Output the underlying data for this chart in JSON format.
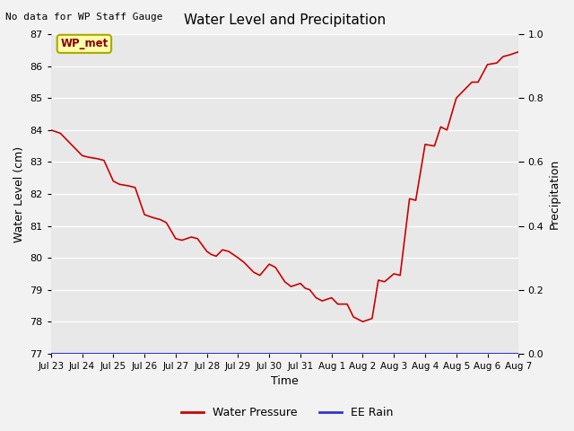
{
  "title": "Water Level and Precipitation",
  "top_left_text": "No data for WP Staff Gauge",
  "xlabel": "Time",
  "ylabel_left": "Water Level (cm)",
  "ylabel_right": "Precipitation",
  "ylim_left": [
    77.0,
    87.0
  ],
  "ylim_right": [
    0.0,
    1.0
  ],
  "yticks_left": [
    77.0,
    78.0,
    79.0,
    80.0,
    81.0,
    82.0,
    83.0,
    84.0,
    85.0,
    86.0,
    87.0
  ],
  "yticks_right": [
    0.0,
    0.2,
    0.4,
    0.6,
    0.8,
    1.0
  ],
  "xtick_labels": [
    "Jul 23",
    "Jul 24",
    "Jul 25",
    "Jul 26",
    "Jul 27",
    "Jul 28",
    "Jul 29",
    "Jul 30",
    "Jul 31",
    "Aug 1",
    "Aug 2",
    "Aug 3",
    "Aug 4",
    "Aug 5",
    "Aug 6",
    "Aug 7"
  ],
  "legend_entries": [
    "Water Pressure",
    "EE Rain"
  ],
  "legend_colors": [
    "#cc0000",
    "#3333cc"
  ],
  "wp_met_label": "WP_met",
  "wp_met_bg": "#ffffaa",
  "wp_met_border": "#aaa800",
  "wp_met_text_color": "#880000",
  "plot_bg_color": "#e8e8e8",
  "figure_bg_color": "#f2f2f2",
  "line_color": "#cc0000",
  "rain_line_color": "#3333cc",
  "grid_color": "#ffffff",
  "water_level_x": [
    0,
    0.15,
    0.3,
    0.5,
    0.7,
    1.0,
    1.2,
    1.5,
    1.7,
    2.0,
    2.2,
    2.5,
    2.7,
    3.0,
    3.15,
    3.3,
    3.5,
    3.7,
    4.0,
    4.2,
    4.5,
    4.7,
    5.0,
    5.15,
    5.3,
    5.5,
    5.7,
    6.0,
    6.2,
    6.5,
    6.7,
    7.0,
    7.2,
    7.5,
    7.7,
    8.0,
    8.15,
    8.3,
    8.5,
    8.7,
    9.0,
    9.2,
    9.5,
    9.7,
    10.0,
    10.15,
    10.3,
    10.5,
    10.7,
    11.0,
    11.2,
    11.5,
    11.7,
    12.0,
    12.3,
    12.5,
    12.7,
    13.0,
    13.3,
    13.5,
    13.7,
    14.0,
    14.3,
    14.5,
    14.7,
    15.0
  ],
  "water_level_y": [
    84.0,
    83.95,
    83.9,
    83.7,
    83.5,
    83.2,
    83.15,
    83.1,
    83.05,
    82.4,
    82.3,
    82.25,
    82.2,
    81.35,
    81.3,
    81.25,
    81.2,
    81.1,
    80.6,
    80.55,
    80.65,
    80.6,
    80.2,
    80.1,
    80.05,
    80.25,
    80.2,
    80.0,
    79.85,
    79.55,
    79.45,
    79.8,
    79.7,
    79.25,
    79.1,
    79.2,
    79.05,
    79.0,
    78.75,
    78.65,
    78.75,
    78.55,
    78.55,
    78.15,
    78.0,
    78.05,
    78.1,
    79.3,
    79.25,
    79.5,
    79.45,
    81.85,
    81.8,
    83.55,
    83.5,
    84.1,
    84.0,
    85.0,
    85.3,
    85.5,
    85.5,
    86.05,
    86.1,
    86.3,
    86.35,
    86.45
  ]
}
